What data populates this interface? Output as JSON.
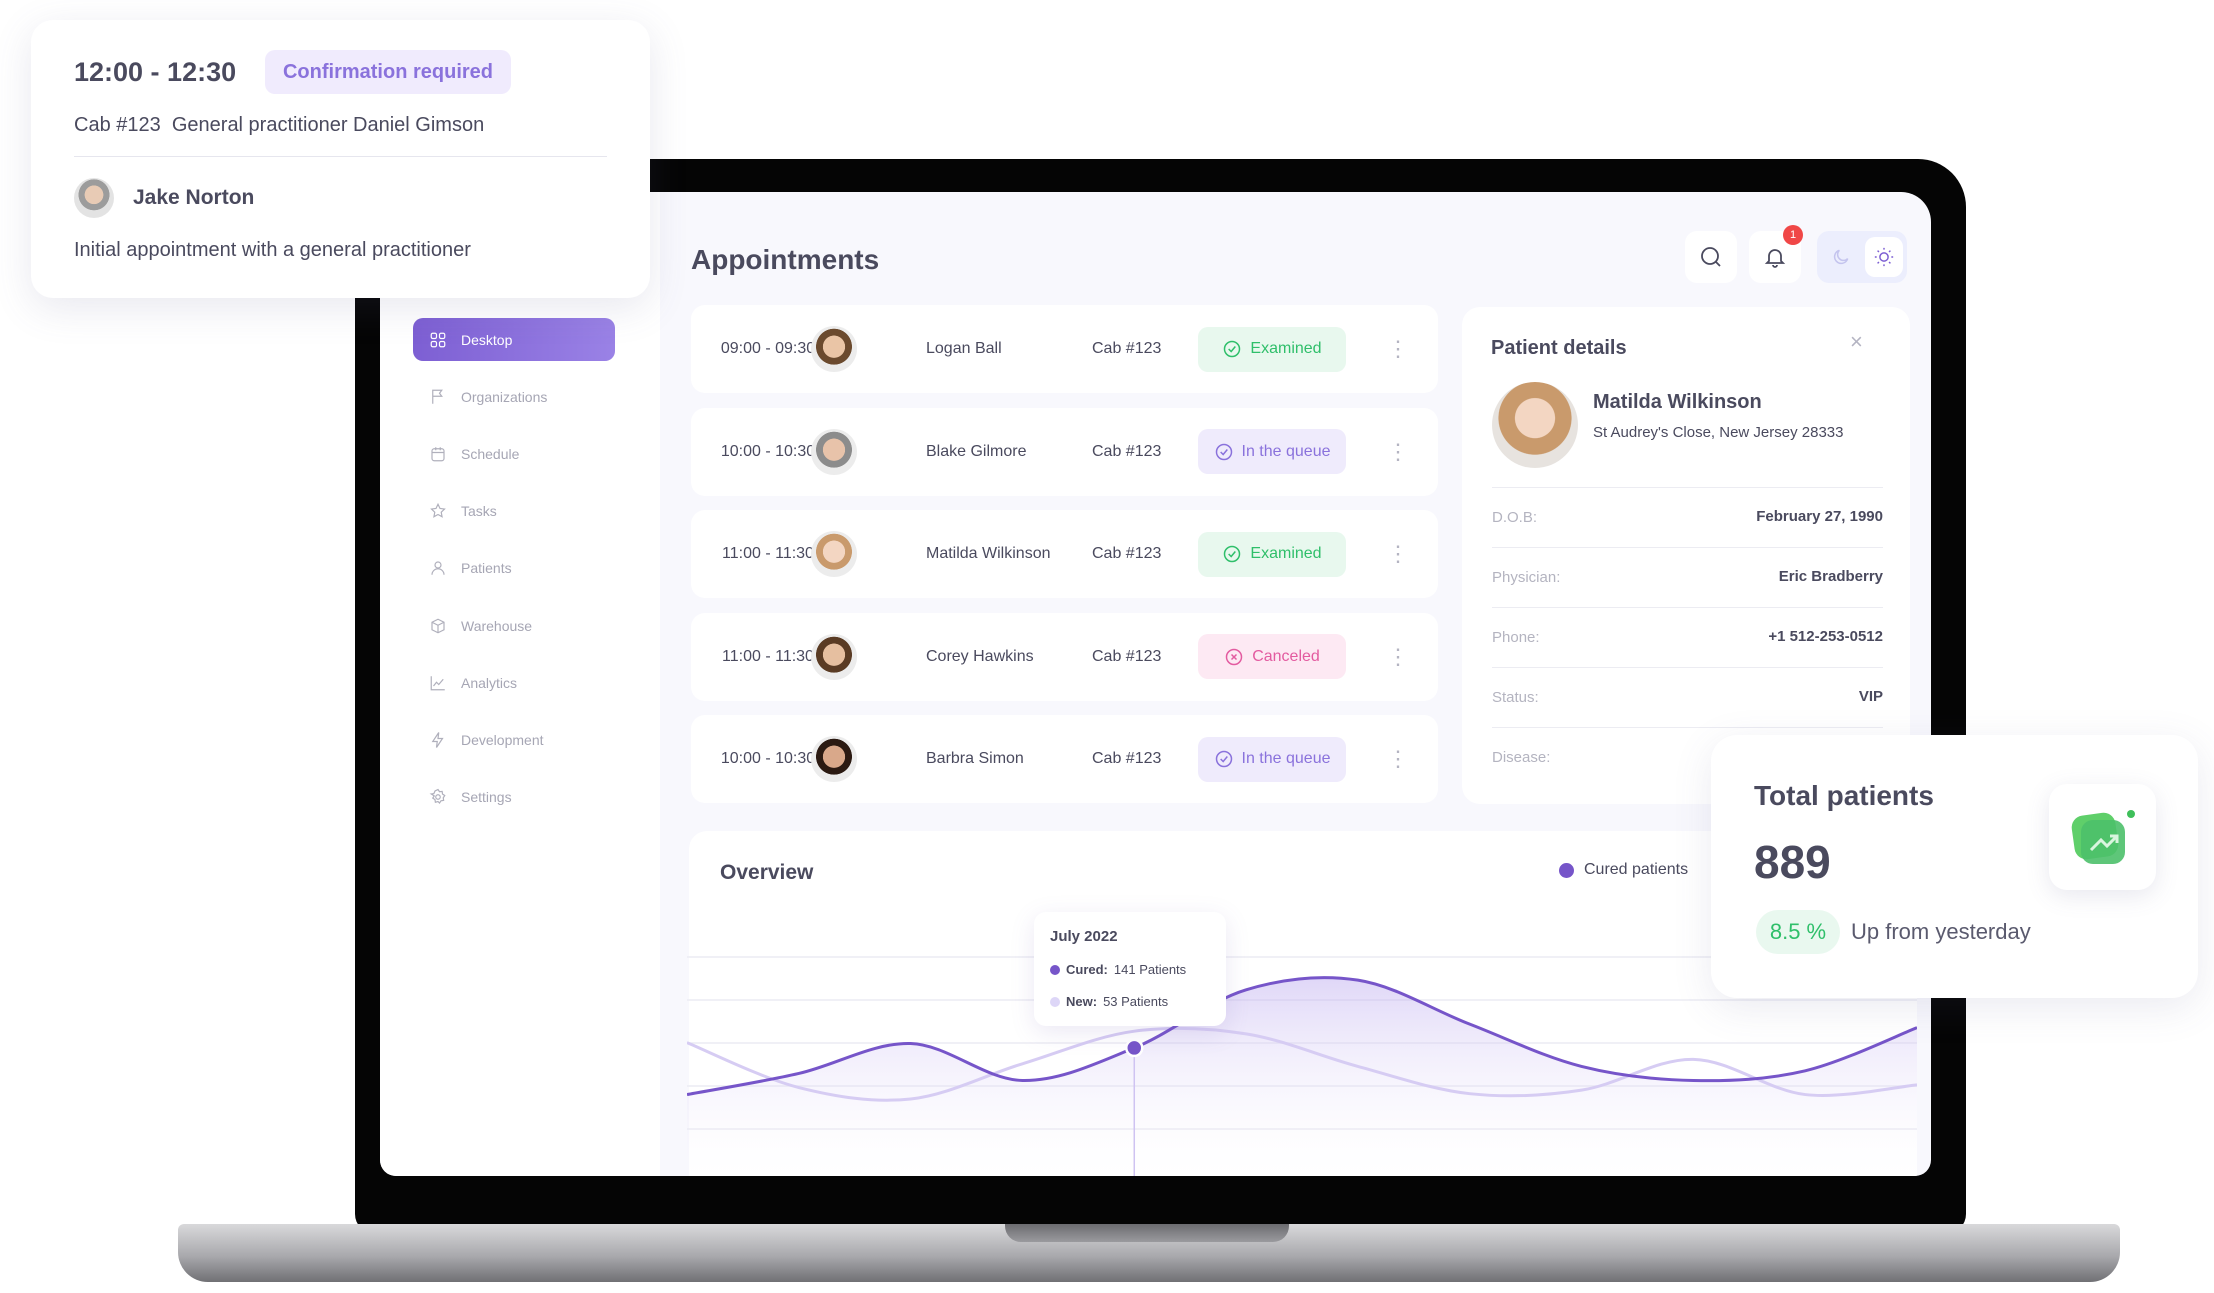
{
  "popup": {
    "time": "12:00 - 12:30",
    "status": "Confirmation required",
    "details": "Cab #123  General practitioner Daniel Gimson",
    "patient": "Jake Norton",
    "description": "Initial appointment with a general practitioner"
  },
  "sidebar": {
    "items": [
      {
        "label": "Desktop",
        "icon": "grid-icon",
        "active": true
      },
      {
        "label": "Organizations",
        "icon": "flag-icon"
      },
      {
        "label": "Schedule",
        "icon": "calendar-icon"
      },
      {
        "label": "Tasks",
        "icon": "star-icon"
      },
      {
        "label": "Patients",
        "icon": "user-icon"
      },
      {
        "label": "Warehouse",
        "icon": "box-icon"
      },
      {
        "label": "Analytics",
        "icon": "chart-icon"
      },
      {
        "label": "Development",
        "icon": "lightning-icon"
      },
      {
        "label": "Settings",
        "icon": "gear-icon"
      }
    ]
  },
  "header": {
    "title": "Appointments",
    "notification_count": "1",
    "theme": "light"
  },
  "appointments": [
    {
      "time": "09:00 - 09:30",
      "name": "Logan Ball",
      "cab": "Cab #123",
      "status": "Examined",
      "kind": "examined"
    },
    {
      "time": "10:00 - 10:30",
      "name": "Blake Gilmore",
      "cab": "Cab #123",
      "status": "In the queue",
      "kind": "queue"
    },
    {
      "time": "11:00 - 11:30",
      "name": "Matilda Wilkinson",
      "cab": "Cab #123",
      "status": "Examined",
      "kind": "examined"
    },
    {
      "time": "11:00 - 11:30",
      "name": "Corey Hawkins",
      "cab": "Cab #123",
      "status": "Canceled",
      "kind": "canceled"
    },
    {
      "time": "10:00 - 10:30",
      "name": "Barbra Simon",
      "cab": "Cab #123",
      "status": "In the queue",
      "kind": "queue"
    }
  ],
  "patient_details": {
    "title": "Patient details",
    "name": "Matilda Wilkinson",
    "address": "St Audrey's Close, New Jersey 28333",
    "fields": [
      {
        "label": "D.O.B:",
        "value": "February 27, 1990"
      },
      {
        "label": "Physician:",
        "value": "Eric Bradberry"
      },
      {
        "label": "Phone:",
        "value": "+1 512-253-0512"
      },
      {
        "label": "Status:",
        "value": "VIP"
      },
      {
        "label": "Disease:",
        "value": ""
      }
    ]
  },
  "total_patients": {
    "title": "Total patients",
    "value": "889",
    "change": "8.5 %",
    "change_text": "Up from yesterday"
  },
  "overview": {
    "title": "Overview",
    "legend": "Cured patients",
    "tooltip": {
      "title": "July 2022",
      "cured_label": "Cured:",
      "cured_value": "141 Patients",
      "new_label": "New:",
      "new_value": "53 Patients"
    }
  },
  "chart_data": {
    "type": "area",
    "ylim": [
      0,
      250
    ],
    "grid": true,
    "legend_position": "top-right",
    "highlight_index": 4,
    "series": [
      {
        "name": "Cured patients",
        "color": "#7655c9",
        "values": [
          88,
          112,
          146,
          104,
          141,
          207,
          218,
          168,
          120,
          104,
          115,
          164
        ]
      },
      {
        "color": "#d6ccf3",
        "values": [
          147,
          96,
          83,
          123,
          160,
          157,
          120,
          89,
          93,
          128,
          88,
          99
        ]
      }
    ]
  },
  "colors": {
    "accent": "#7d5fd3",
    "examined": "#2fbf6a",
    "queue": "#8a72dc",
    "canceled": "#e35ba0",
    "alert": "#f04747"
  }
}
